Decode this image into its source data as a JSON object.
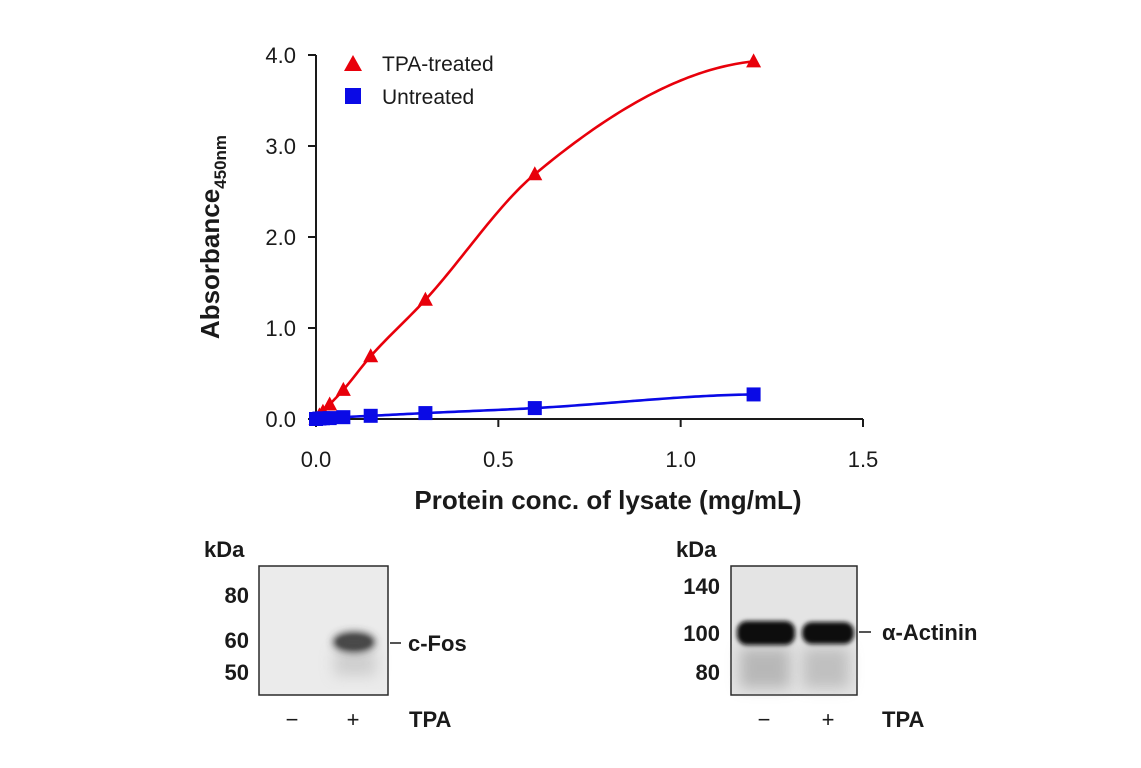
{
  "chart_data": {
    "type": "line",
    "title": "",
    "xlabel": "Protein conc. of lysate (mg/mL)",
    "ylabel": "Absorbance",
    "ylabel_subscript": "450nm",
    "xlim": [
      0,
      1.5
    ],
    "ylim": [
      0,
      4.0
    ],
    "xticks": [
      0.0,
      0.5,
      1.0,
      1.5
    ],
    "xtick_labels": [
      "0.0",
      "0.5",
      "1.0",
      "1.5"
    ],
    "yticks": [
      0.0,
      1.0,
      2.0,
      3.0,
      4.0
    ],
    "ytick_labels": [
      "0.0",
      "1.0",
      "2.0",
      "3.0",
      "4.0"
    ],
    "grid": false,
    "legend": "top-left",
    "series": [
      {
        "name": "TPA-treated",
        "color": "#e8000b",
        "marker": "triangle",
        "x": [
          0.0,
          0.0094,
          0.019,
          0.0375,
          0.075,
          0.15,
          0.3,
          0.6,
          1.2
        ],
        "values": [
          0.0,
          0.04,
          0.08,
          0.16,
          0.32,
          0.69,
          1.31,
          2.69,
          3.93
        ]
      },
      {
        "name": "Untreated",
        "color": "#0a0ae6",
        "marker": "square",
        "x": [
          0.0,
          0.0094,
          0.019,
          0.0375,
          0.075,
          0.15,
          0.3,
          0.6,
          1.2
        ],
        "values": [
          0.0,
          0.005,
          0.008,
          0.01,
          0.02,
          0.035,
          0.065,
          0.12,
          0.27
        ]
      }
    ]
  },
  "blots": {
    "left": {
      "kda_title": "kDa",
      "markers": [
        "80",
        "60",
        "50"
      ],
      "band_label": "c-Fos",
      "lanes": [
        "−",
        "+"
      ],
      "treatment": "TPA"
    },
    "right": {
      "kda_title": "kDa",
      "markers": [
        "140",
        "100",
        "80"
      ],
      "band_label": "α-Actinin",
      "lanes": [
        "−",
        "+"
      ],
      "treatment": "TPA"
    }
  }
}
